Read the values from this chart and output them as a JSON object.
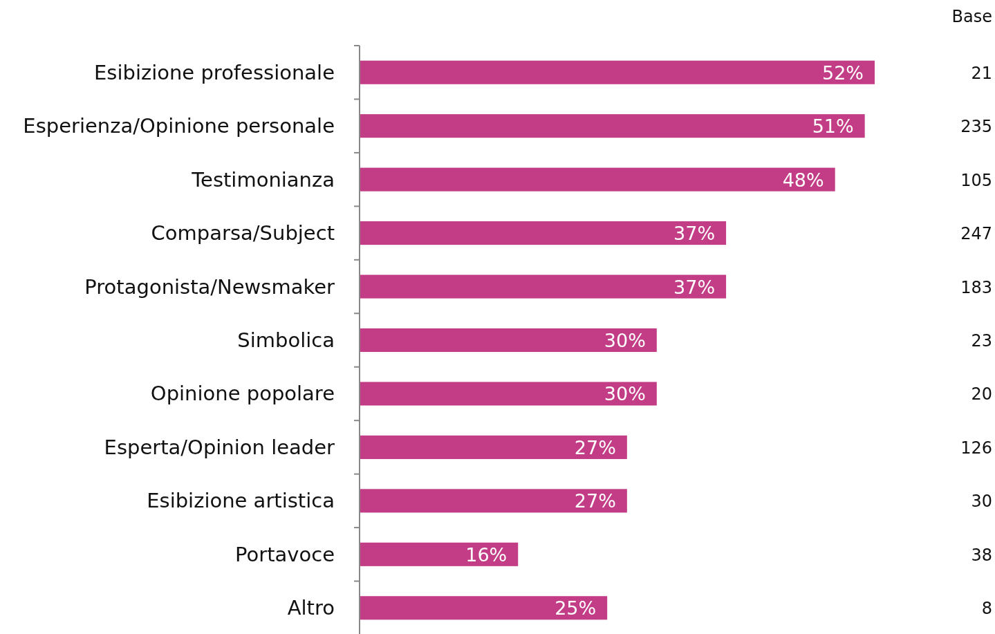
{
  "chart_data": {
    "type": "bar",
    "orientation": "horizontal",
    "categories": [
      "Esibizione professionale",
      "Esperienza/Opinione personale",
      "Testimonianza",
      "Comparsa/Subject",
      "Protagonista/Newsmaker",
      "Simbolica",
      "Opinione popolare",
      "Esperta/Opinion leader",
      "Esibizione artistica",
      "Portavoce",
      "Altro"
    ],
    "values": [
      52,
      51,
      48,
      37,
      37,
      30,
      30,
      27,
      27,
      16,
      25
    ],
    "value_labels": [
      "52%",
      "51%",
      "48%",
      "37%",
      "37%",
      "30%",
      "30%",
      "27%",
      "27%",
      "16%",
      "25%"
    ],
    "color": "#c23d85",
    "tick_labels": "y",
    "annotations": [
      "Base",
      "21",
      "235",
      "105",
      "247",
      "183",
      "23",
      "20",
      "126",
      "30",
      "38",
      "8"
    ]
  }
}
